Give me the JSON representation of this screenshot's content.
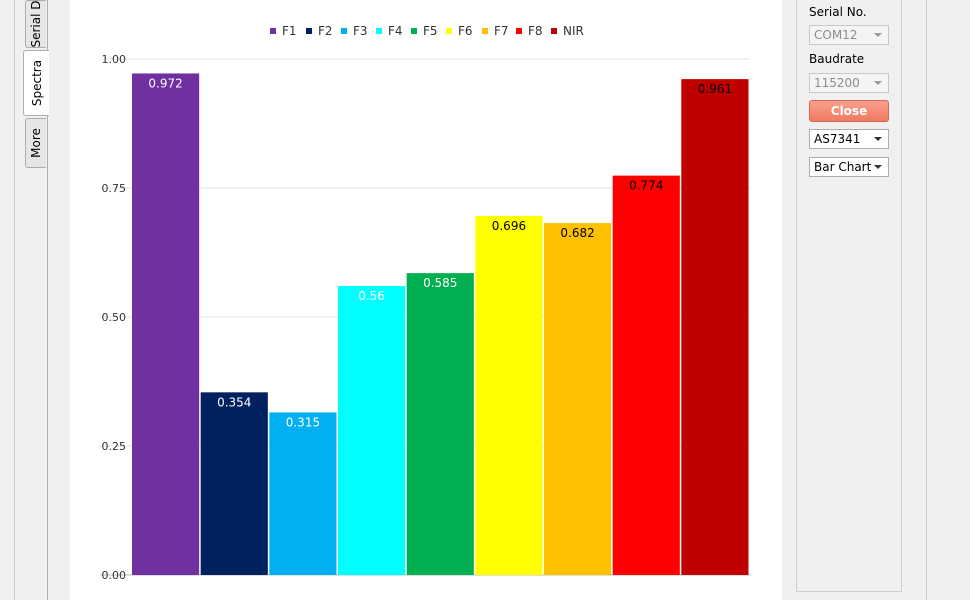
{
  "tabs": [
    {
      "label": "Serial D",
      "active": false
    },
    {
      "label": "Spectra",
      "active": true
    },
    {
      "label": "More",
      "active": false
    }
  ],
  "controls": {
    "serial_label": "Serial No.",
    "serial_value": "COM12",
    "baud_label": "Baudrate",
    "baud_value": "115200",
    "close_label": "Close",
    "sensor_value": "AS7341",
    "chart_type_value": "Bar Chart"
  },
  "colors": {
    "close_button": "#f58a74"
  },
  "chart_data": {
    "type": "bar",
    "categories": [
      "F1",
      "F2",
      "F3",
      "F4",
      "F5",
      "F6",
      "F7",
      "F8",
      "NIR"
    ],
    "values": [
      0.972,
      0.354,
      0.315,
      0.56,
      0.585,
      0.696,
      0.682,
      0.774,
      0.961
    ],
    "value_labels": [
      "0.972",
      "0.354",
      "0.315",
      "0.56",
      "0.585",
      "0.696",
      "0.682",
      "0.774",
      "0.961"
    ],
    "colors": [
      "#7030a0",
      "#002060",
      "#00b0f0",
      "#00ffff",
      "#00b050",
      "#ffff00",
      "#ffc000",
      "#ff0000",
      "#c00000"
    ],
    "label_colors": [
      "#ffffff",
      "#ffffff",
      "#ffffff",
      "#ffffff",
      "#ffffff",
      "#000000",
      "#000000",
      "#000000",
      "#000000"
    ],
    "ylim": [
      0,
      1
    ],
    "yticks": [
      "0.00",
      "0.25",
      "0.50",
      "0.75",
      "1.00"
    ],
    "ytick_values": [
      0,
      0.25,
      0.5,
      0.75,
      1.0
    ],
    "grid": true,
    "legend": "top-center"
  }
}
